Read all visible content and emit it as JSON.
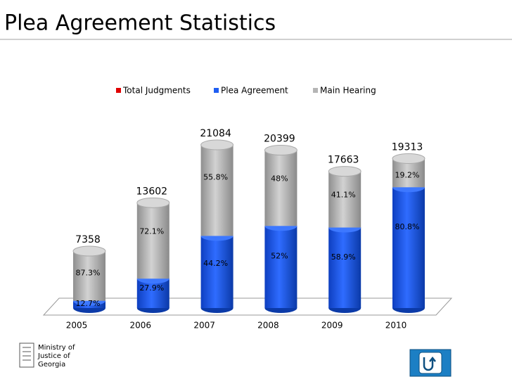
{
  "chart_data": {
    "type": "bar",
    "stacked": true,
    "title": "Plea Agreement Statistics",
    "categories": [
      "2005",
      "2006",
      "2007",
      "2008",
      "2009",
      "2010"
    ],
    "series": [
      {
        "name": "Total Judgments",
        "color": "#e00000",
        "values": [
          7358,
          13602,
          21084,
          20399,
          17663,
          19313
        ]
      },
      {
        "name": "Plea Agreement",
        "color": "#1f5ef2",
        "values": [
          12.7,
          27.9,
          44.2,
          52,
          58.9,
          80.8
        ],
        "value_labels": [
          "12.7%",
          "27.9%",
          "44.2%",
          "52%",
          "58.9%",
          "80.8%"
        ]
      },
      {
        "name": "Main Hearing",
        "color": "#b5b5b5",
        "values": [
          87.3,
          72.1,
          55.8,
          48,
          41.1,
          19.2
        ],
        "value_labels": [
          "87.3%",
          "72.1%",
          "55.8%",
          "48%",
          "41.1%",
          "19.2%"
        ]
      }
    ],
    "legend": "top"
  },
  "logo": [
    "Ministry of",
    "Justice of",
    "Georgia"
  ]
}
